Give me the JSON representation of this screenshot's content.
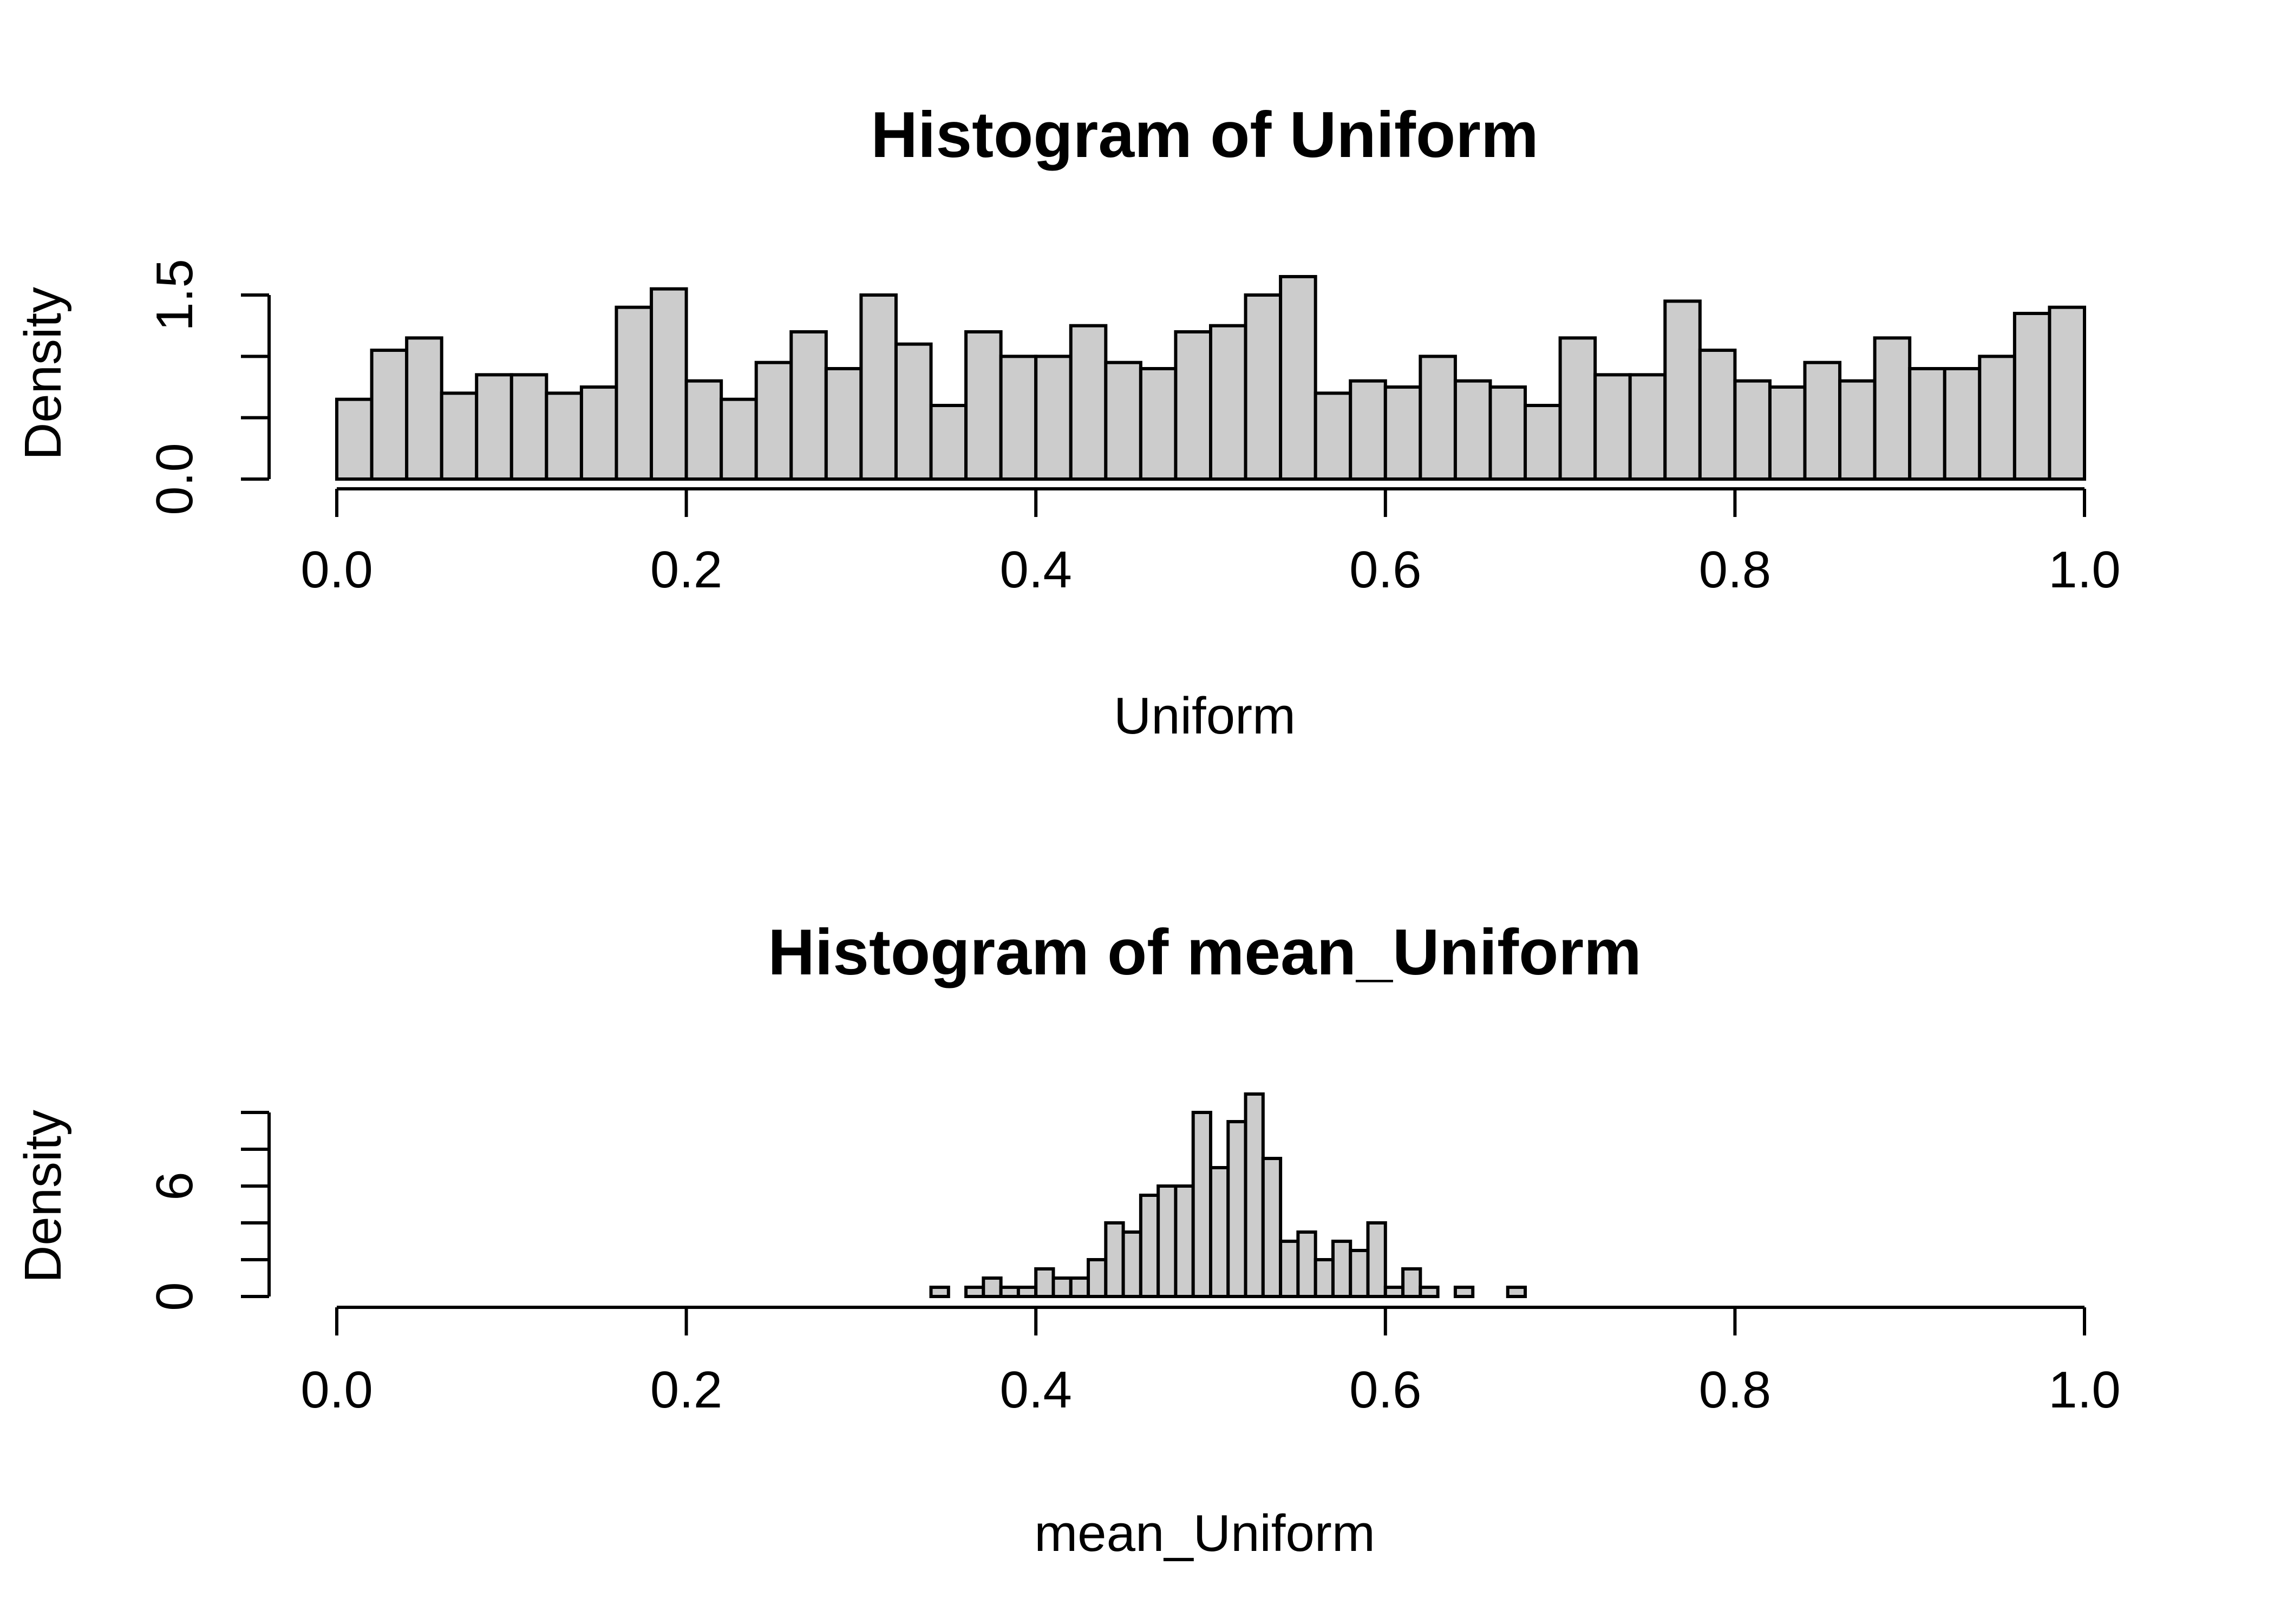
{
  "chart_data": [
    {
      "type": "bar",
      "title": "Histogram of Uniform",
      "xlabel": "Uniform",
      "ylabel": "Density",
      "xlim": [
        0.0,
        1.0
      ],
      "ylim": [
        0.0,
        1.5
      ],
      "x_ticks": [
        "0.0",
        "0.2",
        "0.4",
        "0.6",
        "0.8",
        "1.0"
      ],
      "y_ticks": [
        "0.0",
        "",
        "",
        "1.5"
      ],
      "y_tick_values": [
        0.0,
        0.5,
        1.0,
        1.5
      ],
      "grid": false,
      "bar_color": "#cccccc",
      "edge_color": "#000000",
      "bin_width": 0.02,
      "bin_starts": [
        0.0,
        0.02,
        0.04,
        0.06,
        0.08,
        0.1,
        0.12,
        0.14,
        0.16,
        0.18,
        0.2,
        0.22,
        0.24,
        0.26,
        0.28,
        0.3,
        0.32,
        0.34,
        0.36,
        0.38,
        0.4,
        0.42,
        0.44,
        0.46,
        0.48,
        0.5,
        0.52,
        0.54,
        0.56,
        0.58,
        0.6,
        0.62,
        0.64,
        0.66,
        0.68,
        0.7,
        0.72,
        0.74,
        0.76,
        0.78,
        0.8,
        0.82,
        0.84,
        0.86,
        0.88,
        0.9,
        0.92,
        0.94,
        0.96,
        0.98
      ],
      "values": [
        0.65,
        1.05,
        1.15,
        0.7,
        0.85,
        0.85,
        0.7,
        0.75,
        1.4,
        1.55,
        0.8,
        0.65,
        0.95,
        1.2,
        0.9,
        1.5,
        1.1,
        0.6,
        1.2,
        1.0,
        1.0,
        1.25,
        0.95,
        0.9,
        1.2,
        1.25,
        1.5,
        1.65,
        0.7,
        0.8,
        0.75,
        1.0,
        0.8,
        0.75,
        0.6,
        1.15,
        0.85,
        0.85,
        1.45,
        1.05,
        0.8,
        0.75,
        0.95,
        0.8,
        1.15,
        0.9,
        0.9,
        1.0,
        1.35,
        1.4
      ]
    },
    {
      "type": "bar",
      "title": "Histogram of mean_Uniform",
      "xlabel": "mean_Uniform",
      "ylabel": "Density",
      "xlim": [
        0.0,
        1.0
      ],
      "ylim": [
        0,
        10
      ],
      "x_ticks": [
        "0.0",
        "0.2",
        "0.4",
        "0.6",
        "0.8",
        "1.0"
      ],
      "y_ticks": [
        "0",
        "",
        "",
        "6",
        "",
        ""
      ],
      "y_tick_values": [
        0,
        2,
        4,
        6,
        8,
        10
      ],
      "grid": false,
      "bar_color": "#cccccc",
      "edge_color": "#000000",
      "bin_width": 0.01,
      "bin_starts": [
        0.34,
        0.35,
        0.36,
        0.37,
        0.38,
        0.39,
        0.4,
        0.41,
        0.42,
        0.43,
        0.44,
        0.45,
        0.46,
        0.47,
        0.48,
        0.49,
        0.5,
        0.51,
        0.52,
        0.53,
        0.54,
        0.55,
        0.56,
        0.57,
        0.58,
        0.59,
        0.6,
        0.61,
        0.62,
        0.63,
        0.64,
        0.65,
        0.66,
        0.67
      ],
      "values": [
        0.5,
        0.0,
        0.5,
        1.0,
        0.5,
        0.5,
        1.5,
        1.0,
        1.0,
        2.0,
        4.0,
        3.5,
        5.5,
        6.0,
        6.0,
        10.0,
        7.0,
        9.5,
        11.0,
        7.5,
        3.0,
        3.5,
        2.0,
        3.0,
        2.5,
        4.0,
        0.5,
        1.5,
        0.5,
        0.0,
        0.5,
        0.0,
        0.0,
        0.5
      ]
    }
  ]
}
